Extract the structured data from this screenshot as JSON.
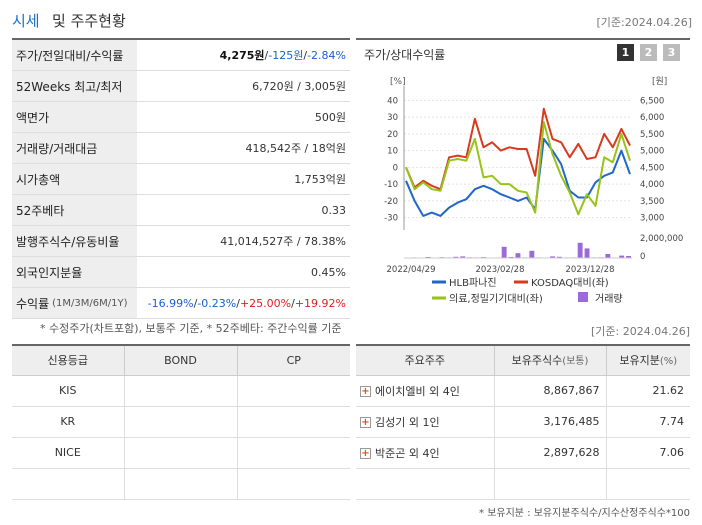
{
  "header": {
    "title_main": "시세",
    "title_sub": "및 주주현황",
    "date": "[기준:2024.04.26]"
  },
  "quote_table": {
    "price_row": {
      "label": "주가/전일대비/수익률",
      "price": "4,275원",
      "sep1": " / ",
      "change": "-125원",
      "sep2": " / ",
      "pct": "-2.84%"
    },
    "rows": [
      {
        "label": "52Weeks 최고/최저",
        "value": "6,720원 / 3,005원"
      },
      {
        "label": "액면가",
        "value": "500원"
      },
      {
        "label": "거래량/거래대금",
        "value": "418,542주 / 18억원"
      },
      {
        "label": "시가총액",
        "value": "1,753억원"
      },
      {
        "label": "52주베타",
        "value": "0.33"
      },
      {
        "label": "발행주식수/유동비율",
        "value": "41,014,527주 / 78.38%"
      },
      {
        "label": "외국인지분율",
        "value": "0.45%"
      }
    ],
    "return_row": {
      "label": "수익률",
      "label_small": "(1M/3M/6M/1Y)",
      "r1": "-16.99%",
      "r2": "-0.23%",
      "r3": "+25.00%",
      "r4": "+19.92%",
      "sep": "/ "
    }
  },
  "note_left": "* 수정주가(차트포함), 보통주 기준, * 52주베타: 주간수익률 기준",
  "chart_panel": {
    "title": "주가/상대수익률",
    "buttons": [
      "1",
      "2",
      "3"
    ],
    "left_unit": "[%]",
    "right_unit": "[원]",
    "vol_label": "2,000,000",
    "vol_zero": "0"
  },
  "chart_data": {
    "type": "line",
    "x_ticks": [
      "2022/04/29",
      "2023/02/28",
      "2023/12/28"
    ],
    "left_ylim": [
      -35,
      45
    ],
    "left_ticks": [
      "40",
      "30",
      "20",
      "10",
      "0",
      "-10",
      "-20",
      "-30"
    ],
    "right_ylim": [
      2750,
      6750
    ],
    "right_ticks": [
      "6,500",
      "6,000",
      "5,500",
      "5,000",
      "4,500",
      "4,000",
      "3,500",
      "3,000"
    ],
    "series": [
      {
        "name": "HLB파나진",
        "color": "#2166c9",
        "values": [
          -8,
          -20,
          -29,
          -27,
          -29,
          -24,
          -21,
          -19,
          -13,
          -11,
          -13,
          -16,
          -18,
          -20,
          -18,
          -25,
          17,
          10,
          2,
          -14,
          -18,
          -18,
          -9,
          -5,
          -3,
          10,
          -4
        ]
      },
      {
        "name": "KOSDAQ대비(좌)",
        "color": "#d63b1f",
        "values": [
          0,
          -12,
          -8,
          -11,
          -13,
          6,
          7,
          6,
          29,
          12,
          15,
          10,
          12,
          11,
          11,
          -5,
          35,
          17,
          15,
          6,
          14,
          5,
          6,
          20,
          12,
          23,
          13
        ]
      },
      {
        "name": "의료,정밀기기대비(좌)",
        "color": "#99c21a",
        "values": [
          0,
          -13,
          -9,
          -13,
          -14,
          4,
          5,
          4,
          17,
          -6,
          -5,
          -10,
          -10,
          -14,
          -15,
          -27,
          27,
          8,
          -5,
          -15,
          -28,
          -16,
          -23,
          6,
          3,
          20,
          4
        ]
      }
    ],
    "volume": {
      "name": "거래량",
      "color": "#9b6ad6",
      "ymax": 2500000,
      "values": [
        0,
        80000,
        50000,
        120000,
        60000,
        100000,
        70000,
        150000,
        200000,
        90000,
        80000,
        110000,
        60000,
        50000,
        1400000,
        120000,
        600000,
        80000,
        900000,
        70000,
        60000,
        200000,
        150000,
        70000,
        80000,
        1900000,
        1200000,
        80000,
        90000,
        500000,
        60000,
        300000,
        250000
      ]
    }
  },
  "right_date": "[기준: 2024.04.26]",
  "credit_table": {
    "headers": [
      "신용등급",
      "BOND",
      "CP"
    ],
    "rows": [
      [
        "KIS",
        "",
        ""
      ],
      [
        "KR",
        "",
        ""
      ],
      [
        "NICE",
        "",
        ""
      ],
      [
        "",
        "",
        ""
      ]
    ]
  },
  "holders_table": {
    "headers": {
      "name": "주요주주",
      "shares": "보유주식수",
      "shares_unit": "(보통)",
      "ratio": "보유지분",
      "ratio_unit": "(%)"
    },
    "rows": [
      {
        "name": "에이치엘비 외 4인",
        "shares": "8,867,867",
        "ratio": "21.62"
      },
      {
        "name": "김성기 외 1인",
        "shares": "3,176,485",
        "ratio": "7.74"
      },
      {
        "name": "박준곤 외 4인",
        "shares": "2,897,628",
        "ratio": "7.06"
      }
    ]
  },
  "note_right": "* 보유지분 : 보유지분주식수/지수산정주식수*100"
}
